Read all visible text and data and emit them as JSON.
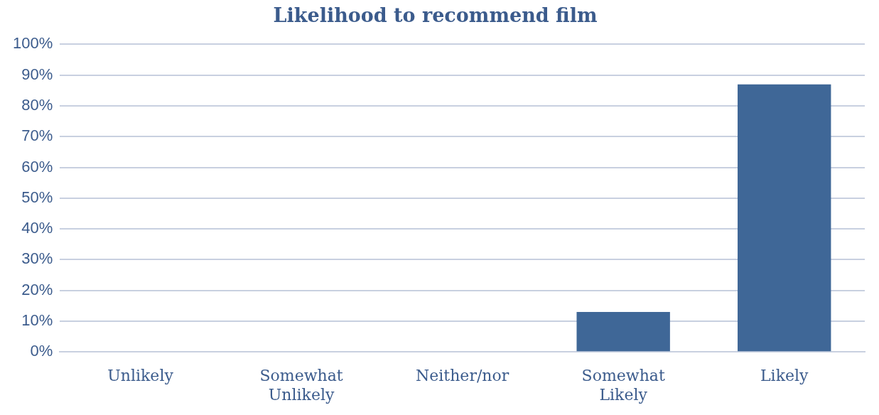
{
  "chart_data": {
    "type": "bar",
    "title": "Likelihood to recommend film",
    "categories": [
      "Unlikely",
      "Somewhat Unlikely",
      "Neither/nor",
      "Somewhat Likely",
      "Likely"
    ],
    "values": [
      0,
      0,
      0,
      13,
      87
    ],
    "color": "#3f6797",
    "ylim": [
      0,
      100
    ],
    "yticks": [
      {
        "value": 0,
        "label": "0%"
      },
      {
        "value": 10,
        "label": "10%"
      },
      {
        "value": 20,
        "label": "20%"
      },
      {
        "value": 30,
        "label": "30%"
      },
      {
        "value": 40,
        "label": "40%"
      },
      {
        "value": 50,
        "label": "50%"
      },
      {
        "value": 60,
        "label": "60%"
      },
      {
        "value": 70,
        "label": "70%"
      },
      {
        "value": 80,
        "label": "80%"
      },
      {
        "value": 90,
        "label": "90%"
      },
      {
        "value": 100,
        "label": "100%"
      }
    ],
    "grid": "y"
  }
}
